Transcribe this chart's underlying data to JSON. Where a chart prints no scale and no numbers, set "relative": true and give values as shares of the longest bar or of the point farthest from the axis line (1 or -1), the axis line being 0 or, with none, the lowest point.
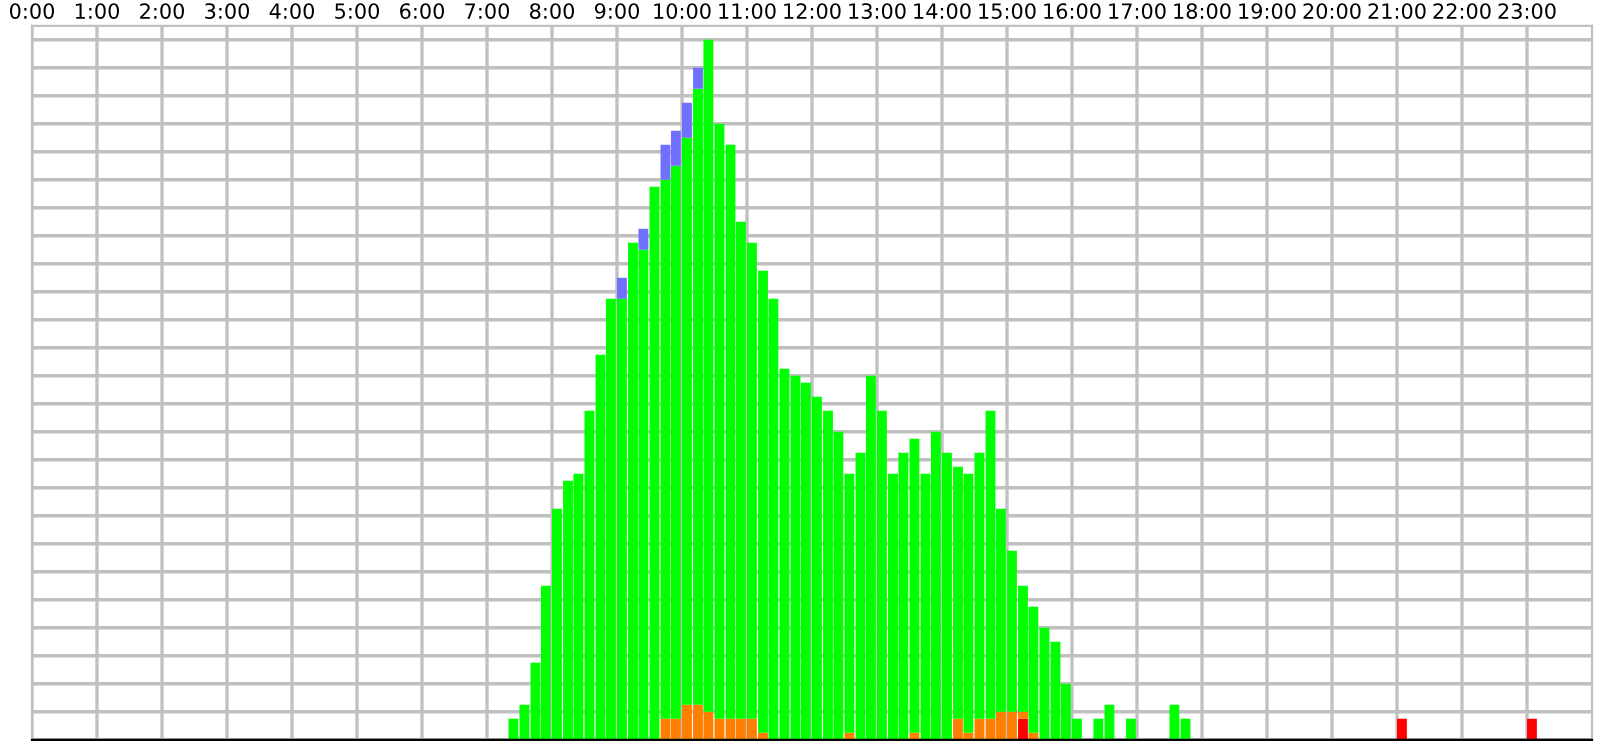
{
  "chart_data": {
    "type": "bar",
    "stacked": true,
    "relative": true,
    "grid": true,
    "tick_labels": "x",
    "x": [
      7.33,
      7.5,
      7.67,
      7.83,
      8.0,
      8.17,
      8.33,
      8.5,
      8.67,
      8.83,
      9.0,
      9.17,
      9.33,
      9.5,
      9.67,
      9.83,
      10.0,
      10.17,
      10.33,
      10.5,
      10.67,
      10.83,
      11.0,
      11.17,
      11.33,
      11.5,
      11.67,
      11.83,
      12.0,
      12.17,
      12.33,
      12.5,
      12.67,
      12.83,
      13.0,
      13.17,
      13.33,
      13.5,
      13.67,
      13.83,
      14.0,
      14.17,
      14.33,
      14.5,
      14.67,
      14.83,
      15.0,
      15.17,
      15.33,
      15.5,
      15.67,
      15.83,
      16.0,
      16.33,
      16.5,
      16.83,
      17.5,
      17.67,
      21.0,
      23.0
    ],
    "series": [
      {
        "color": "#ff0000",
        "values": [
          0,
          0,
          0,
          0,
          0,
          0,
          0,
          0,
          0,
          0,
          0,
          0,
          0,
          0,
          0,
          0,
          0,
          0,
          0,
          0,
          0,
          0,
          0,
          0,
          0,
          0,
          0,
          0,
          0,
          0,
          0,
          0,
          0,
          0,
          0,
          0,
          0,
          0,
          0,
          0,
          0,
          0,
          0,
          0,
          0,
          0,
          0,
          0.03,
          0,
          0,
          0,
          0,
          0,
          0,
          0,
          0,
          0,
          0,
          0.03,
          0.03
        ]
      },
      {
        "color": "#ff8000",
        "values": [
          0,
          0,
          0,
          0,
          0,
          0,
          0,
          0,
          0,
          0,
          0,
          0,
          0,
          0,
          0.03,
          0.03,
          0.05,
          0.05,
          0.04,
          0.03,
          0.03,
          0.03,
          0.03,
          0.01,
          0,
          0,
          0,
          0,
          0,
          0,
          0,
          0.01,
          0,
          0,
          0,
          0,
          0,
          0.01,
          0,
          0,
          0,
          0.03,
          0.01,
          0.03,
          0.03,
          0.04,
          0.04,
          0.01,
          0.01,
          0,
          0,
          0,
          0,
          0,
          0,
          0,
          0,
          0,
          0,
          0
        ]
      },
      {
        "color": "#00ff00",
        "values": [
          0.03,
          0.05,
          0.11,
          0.22,
          0.33,
          0.37,
          0.38,
          0.47,
          0.55,
          0.63,
          0.63,
          0.71,
          0.7,
          0.79,
          0.77,
          0.79,
          0.81,
          0.88,
          0.96,
          0.85,
          0.82,
          0.71,
          0.68,
          0.66,
          0.63,
          0.53,
          0.52,
          0.51,
          0.49,
          0.47,
          0.44,
          0.37,
          0.41,
          0.52,
          0.47,
          0.38,
          0.41,
          0.42,
          0.38,
          0.44,
          0.41,
          0.36,
          0.37,
          0.38,
          0.44,
          0.29,
          0.23,
          0.18,
          0.18,
          0.16,
          0.14,
          0.08,
          0.03,
          0.03,
          0.05,
          0.03,
          0.05,
          0.03,
          0,
          0
        ]
      },
      {
        "color": "#7070ff",
        "values": [
          0,
          0,
          0,
          0,
          0,
          0,
          0,
          0,
          0,
          0,
          0.03,
          0,
          0.03,
          0,
          0.05,
          0.05,
          0.05,
          0.03,
          0,
          0,
          0,
          0,
          0,
          0,
          0,
          0,
          0,
          0,
          0,
          0,
          0,
          0,
          0,
          0,
          0,
          0,
          0,
          0,
          0,
          0,
          0,
          0,
          0,
          0,
          0,
          0,
          0,
          0,
          0,
          0,
          0,
          0,
          0,
          0,
          0,
          0,
          0,
          0,
          0,
          0
        ]
      }
    ],
    "xlim": [
      0,
      24
    ],
    "xticks": [
      {
        "value": 0,
        "label": "0:00"
      },
      {
        "value": 1,
        "label": "1:00"
      },
      {
        "value": 2,
        "label": "2:00"
      },
      {
        "value": 3,
        "label": "3:00"
      },
      {
        "value": 4,
        "label": "4:00"
      },
      {
        "value": 5,
        "label": "5:00"
      },
      {
        "value": 6,
        "label": "6:00"
      },
      {
        "value": 7,
        "label": "7:00"
      },
      {
        "value": 8,
        "label": "8:00"
      },
      {
        "value": 9,
        "label": "9:00"
      },
      {
        "value": 10,
        "label": "10:00"
      },
      {
        "value": 11,
        "label": "11:00"
      },
      {
        "value": 12,
        "label": "12:00"
      },
      {
        "value": 13,
        "label": "13:00"
      },
      {
        "value": 14,
        "label": "14:00"
      },
      {
        "value": 15,
        "label": "15:00"
      },
      {
        "value": 16,
        "label": "16:00"
      },
      {
        "value": 17,
        "label": "17:00"
      },
      {
        "value": 18,
        "label": "18:00"
      },
      {
        "value": 19,
        "label": "19:00"
      },
      {
        "value": 20,
        "label": "20:00"
      },
      {
        "value": 21,
        "label": "21:00"
      },
      {
        "value": 22,
        "label": "22:00"
      },
      {
        "value": 23,
        "label": "23:00"
      }
    ]
  }
}
